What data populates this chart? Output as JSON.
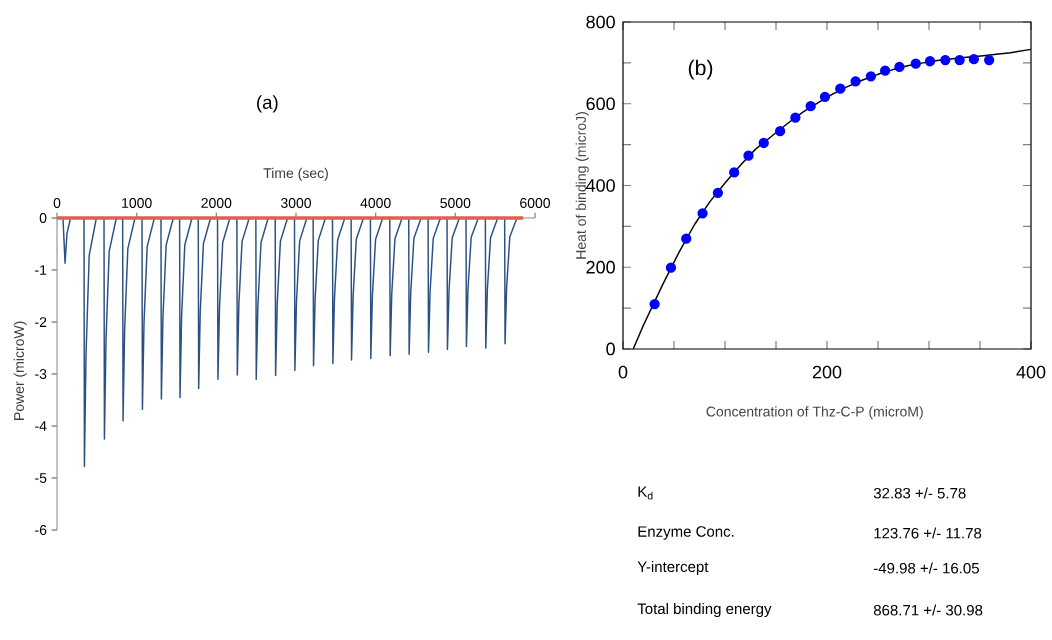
{
  "chart_data": [
    {
      "type": "line",
      "title": "(a)",
      "xlabel": "Time (sec)",
      "ylabel": "Power (microW)",
      "x": [
        0,
        75,
        101,
        125,
        170,
        339,
        344,
        364,
        404,
        494,
        590,
        595,
        615,
        655,
        745,
        824,
        829,
        849,
        889,
        979,
        1067,
        1072,
        1092,
        1132,
        1222,
        1305,
        1310,
        1330,
        1370,
        1460,
        1539,
        1544,
        1564,
        1604,
        1694,
        1773,
        1778,
        1798,
        1838,
        1928,
        2015,
        2020,
        2040,
        2080,
        2170,
        2258,
        2263,
        2283,
        2323,
        2413,
        2496,
        2501,
        2521,
        2561,
        2651,
        2739,
        2744,
        2764,
        2804,
        2894,
        2981,
        2986,
        3006,
        3046,
        3136,
        3215,
        3220,
        3240,
        3280,
        3370,
        3458,
        3463,
        3483,
        3523,
        3613,
        3692,
        3697,
        3717,
        3757,
        3847,
        3934,
        3939,
        3959,
        3999,
        4089,
        4177,
        4182,
        4202,
        4242,
        4332,
        4415,
        4420,
        4440,
        4480,
        4570,
        4658,
        4663,
        4683,
        4723,
        4813,
        4896,
        4901,
        4921,
        4961,
        5051,
        5134,
        5139,
        5159,
        5199,
        5289,
        5377,
        5382,
        5402,
        5442,
        5532,
        5619,
        5624,
        5644,
        5684,
        5774,
        5850
      ],
      "series": [
        {
          "color": "#2b5183",
          "values": [
            0,
            0,
            -0.87,
            -0.3,
            0,
            0,
            -4.78,
            -2.63,
            -0.72,
            0,
            0,
            -4.25,
            -2.34,
            -0.64,
            0,
            0,
            -3.9,
            -2.15,
            -0.59,
            0,
            0,
            -3.68,
            -2.02,
            -0.55,
            0,
            0,
            -3.48,
            -1.91,
            -0.52,
            0,
            0,
            -3.45,
            -1.9,
            -0.52,
            0,
            0,
            -3.28,
            -1.8,
            -0.49,
            0,
            0,
            -3.1,
            -1.71,
            -0.47,
            0,
            0,
            -3.02,
            -1.66,
            -0.45,
            0,
            0,
            -3.1,
            -1.71,
            -0.47,
            0,
            0,
            -3.03,
            -1.67,
            -0.45,
            0,
            0,
            -2.93,
            -1.61,
            -0.44,
            0,
            0,
            -2.84,
            -1.56,
            -0.43,
            0,
            0,
            -2.8,
            -1.54,
            -0.42,
            0,
            0,
            -2.73,
            -1.5,
            -0.41,
            0,
            0,
            -2.7,
            -1.49,
            -0.41,
            0,
            0,
            -2.65,
            -1.46,
            -0.4,
            0,
            0,
            -2.62,
            -1.44,
            -0.39,
            0,
            0,
            -2.58,
            -1.42,
            -0.39,
            0,
            0,
            -2.53,
            -1.39,
            -0.38,
            0,
            0,
            -2.47,
            -1.36,
            -0.37,
            0,
            0,
            -2.5,
            -1.38,
            -0.38,
            0,
            0,
            -2.42,
            -1.33,
            -0.36,
            0,
            0
          ]
        }
      ],
      "xlim": [
        0,
        6000
      ],
      "ylim": [
        -6,
        0
      ],
      "xticks": [
        0,
        1000,
        2000,
        3000,
        4000,
        5000,
        6000
      ],
      "yticks": [
        0,
        -1,
        -2,
        -3,
        -4,
        -5,
        -6
      ],
      "ref_lines": [
        {
          "axis": "y",
          "value": 0,
          "color": "#e0604a"
        }
      ]
    },
    {
      "type": "scatter",
      "title": "(b)",
      "xlabel": "Concentration of Thz-C-P (microM)",
      "ylabel": "Heat of binding (microJ)",
      "series": [
        {
          "type": "scatter",
          "color": "#0000ff",
          "x": [
            31,
            47,
            62,
            78,
            93,
            109,
            123,
            138,
            154,
            169,
            184,
            198,
            213,
            228,
            243,
            257,
            271,
            287,
            301,
            316,
            330,
            344,
            359
          ],
          "values": [
            110,
            199,
            270,
            332,
            382,
            432,
            473,
            504,
            533,
            566,
            594,
            617,
            637,
            655,
            667,
            681,
            690,
            698,
            704,
            707,
            707,
            709,
            707
          ]
        },
        {
          "type": "line",
          "color": "#000000",
          "x": [
            10,
            20,
            39,
            55,
            70,
            85,
            101,
            116,
            130,
            146,
            161,
            176,
            191,
            205,
            220,
            235,
            250,
            264,
            279,
            294,
            308,
            323,
            337,
            351,
            366,
            380,
            400
          ],
          "values": [
            0,
            58,
            158,
            237,
            304,
            360,
            409,
            452,
            489,
            521,
            551,
            579,
            602,
            623,
            642,
            658,
            672,
            683,
            693,
            700,
            706,
            710,
            714,
            717,
            721,
            725,
            733
          ]
        }
      ],
      "xlim": [
        0,
        400
      ],
      "ylim": [
        0,
        800
      ],
      "xticks": [
        0,
        {
          "value": 50,
          "label": null
        },
        {
          "value": 100,
          "label": null
        },
        {
          "value": 150,
          "label": null
        },
        200,
        {
          "value": 250,
          "label": null
        },
        {
          "value": 300,
          "label": null
        },
        {
          "value": 350,
          "label": null
        },
        400
      ],
      "yticks": [
        0,
        {
          "value": 100,
          "label": null
        },
        200,
        {
          "value": 300,
          "label": null
        },
        400,
        {
          "value": 500,
          "label": null
        },
        600,
        {
          "value": 700,
          "label": null
        },
        800
      ]
    },
    {
      "type": "other",
      "annotations": [
        "K$_{d}$",
        "32.83 +/- 5.78",
        "Enzyme Conc.",
        "123.76 +/- 11.78",
        "Y-intercept",
        "-49.98 +/- 16.05",
        "Total binding energy",
        "868.71 +/- 30.98"
      ]
    }
  ]
}
